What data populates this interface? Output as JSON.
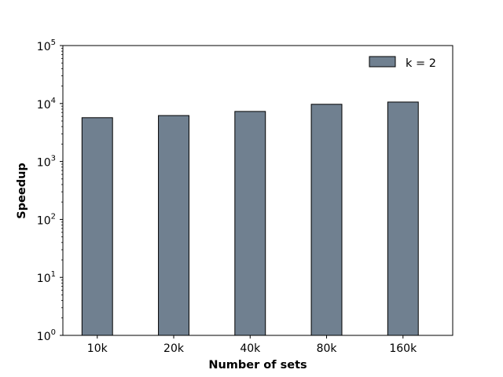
{
  "chart_data": {
    "type": "bar",
    "title": "",
    "xlabel": "Number of sets",
    "ylabel": "Speedup",
    "yscale": "log",
    "ylim": [
      1,
      100000
    ],
    "categories": [
      "10k",
      "20k",
      "40k",
      "80k",
      "160k"
    ],
    "series": [
      {
        "name": "k = 2",
        "values": [
          5700,
          6200,
          7300,
          9700,
          10600
        ]
      }
    ],
    "y_ticks": [
      {
        "base": "10",
        "exp": "0",
        "value": 1
      },
      {
        "base": "10",
        "exp": "1",
        "value": 10
      },
      {
        "base": "10",
        "exp": "2",
        "value": 100
      },
      {
        "base": "10",
        "exp": "3",
        "value": 1000
      },
      {
        "base": "10",
        "exp": "4",
        "value": 10000
      },
      {
        "base": "10",
        "exp": "5",
        "value": 100000
      }
    ],
    "grid": false,
    "legend_position": "top-right",
    "bar_color": "#708090",
    "edge_color": "#000000"
  }
}
